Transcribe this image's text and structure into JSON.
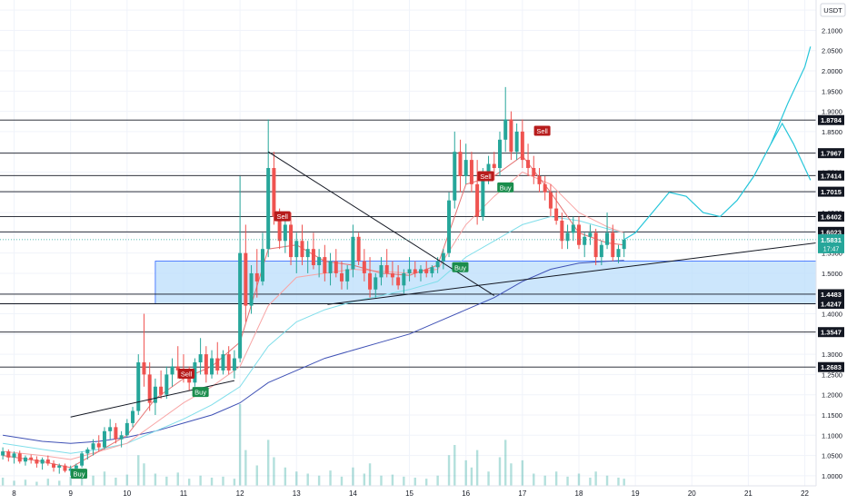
{
  "chart_data": {
    "type": "candlestick",
    "currency": "USDT",
    "x_ticks": [
      "8",
      "9",
      "10",
      "11",
      "12",
      "13",
      "14",
      "15",
      "16",
      "17",
      "18",
      "19",
      "20",
      "21",
      "22"
    ],
    "y_ticks": [
      "2.1500",
      "2.1000",
      "2.0500",
      "2.0000",
      "1.9500",
      "1.9000",
      "1.8500",
      "1.8000",
      "1.7500",
      "1.7000",
      "1.6500",
      "1.6000",
      "1.5500",
      "1.5000",
      "1.4500",
      "1.4000",
      "1.3500",
      "1.3000",
      "1.2500",
      "1.2000",
      "1.1500",
      "1.1000",
      "1.0500",
      "1.0000"
    ],
    "ylim": [
      0.975,
      2.175
    ],
    "xlim": [
      7.75,
      22.2
    ],
    "last_price": {
      "value": "1.5831",
      "countdown": "17:47"
    },
    "levels": [
      {
        "value": 1.8784,
        "label": "1.8784"
      },
      {
        "value": 1.7967,
        "label": "1.7967"
      },
      {
        "value": 1.7414,
        "label": "1.7414"
      },
      {
        "value": 1.7015,
        "label": "1.7015"
      },
      {
        "value": 1.6402,
        "label": "1.6402"
      },
      {
        "value": 1.6023,
        "label": "1.6023"
      },
      {
        "value": 1.4483,
        "label": "1.4483"
      },
      {
        "value": 1.4247,
        "label": "1.4247"
      },
      {
        "value": 1.3547,
        "label": "1.3547"
      },
      {
        "value": 1.2683,
        "label": "1.2683"
      }
    ],
    "zone": {
      "x": [
        10.5,
        22.2
      ],
      "y": [
        1.4247,
        1.53
      ]
    },
    "signals": [
      {
        "label": "Buy",
        "x": 9.15,
        "y": 1.005
      },
      {
        "label": "Sell",
        "x": 11.05,
        "y": 1.252
      },
      {
        "label": "Buy",
        "x": 11.3,
        "y": 1.207
      },
      {
        "label": "Sell",
        "x": 12.75,
        "y": 1.641
      },
      {
        "label": "Buy",
        "x": 15.9,
        "y": 1.515
      },
      {
        "label": "Sell",
        "x": 16.35,
        "y": 1.74
      },
      {
        "label": "Buy",
        "x": 16.7,
        "y": 1.712
      },
      {
        "label": "Sell",
        "x": 17.35,
        "y": 1.852
      }
    ],
    "candles": [
      [
        7.8,
        1.05,
        1.07,
        1.04,
        1.06
      ],
      [
        7.9,
        1.06,
        1.065,
        1.035,
        1.045
      ],
      [
        8.0,
        1.045,
        1.06,
        1.03,
        1.055
      ],
      [
        8.1,
        1.055,
        1.062,
        1.03,
        1.035
      ],
      [
        8.2,
        1.035,
        1.05,
        1.025,
        1.045
      ],
      [
        8.3,
        1.045,
        1.052,
        1.03,
        1.04
      ],
      [
        8.4,
        1.04,
        1.048,
        1.02,
        1.03
      ],
      [
        8.5,
        1.03,
        1.045,
        1.015,
        1.04
      ],
      [
        8.6,
        1.04,
        1.05,
        1.025,
        1.03
      ],
      [
        8.7,
        1.03,
        1.038,
        1.01,
        1.02
      ],
      [
        8.8,
        1.02,
        1.03,
        1.005,
        1.025
      ],
      [
        8.9,
        1.025,
        1.03,
        1.008,
        1.012
      ],
      [
        9.0,
        1.012,
        1.025,
        1.0,
        1.018
      ],
      [
        9.1,
        1.018,
        1.03,
        1.005,
        1.025
      ],
      [
        9.2,
        1.025,
        1.06,
        1.02,
        1.055
      ],
      [
        9.3,
        1.055,
        1.07,
        1.04,
        1.065
      ],
      [
        9.4,
        1.065,
        1.09,
        1.05,
        1.08
      ],
      [
        9.5,
        1.08,
        1.1,
        1.06,
        1.07
      ],
      [
        9.6,
        1.07,
        1.12,
        1.065,
        1.11
      ],
      [
        9.7,
        1.11,
        1.14,
        1.09,
        1.12
      ],
      [
        9.8,
        1.12,
        1.13,
        1.08,
        1.09
      ],
      [
        9.9,
        1.09,
        1.11,
        1.07,
        1.1
      ],
      [
        10.0,
        1.1,
        1.14,
        1.095,
        1.13
      ],
      [
        10.1,
        1.13,
        1.17,
        1.12,
        1.16
      ],
      [
        10.2,
        1.16,
        1.3,
        1.15,
        1.28
      ],
      [
        10.3,
        1.28,
        1.4,
        1.22,
        1.25
      ],
      [
        10.4,
        1.25,
        1.28,
        1.16,
        1.18
      ],
      [
        10.5,
        1.18,
        1.24,
        1.15,
        1.22
      ],
      [
        10.6,
        1.22,
        1.26,
        1.19,
        1.2
      ],
      [
        10.7,
        1.2,
        1.27,
        1.19,
        1.25
      ],
      [
        10.8,
        1.25,
        1.29,
        1.22,
        1.27
      ],
      [
        10.9,
        1.27,
        1.32,
        1.24,
        1.26
      ],
      [
        11.0,
        1.26,
        1.3,
        1.23,
        1.24
      ],
      [
        11.1,
        1.24,
        1.27,
        1.21,
        1.23
      ],
      [
        11.2,
        1.23,
        1.29,
        1.22,
        1.28
      ],
      [
        11.3,
        1.28,
        1.34,
        1.25,
        1.3
      ],
      [
        11.4,
        1.3,
        1.32,
        1.23,
        1.25
      ],
      [
        11.5,
        1.25,
        1.31,
        1.24,
        1.29
      ],
      [
        11.6,
        1.29,
        1.33,
        1.25,
        1.26
      ],
      [
        11.7,
        1.26,
        1.31,
        1.25,
        1.3
      ],
      [
        11.8,
        1.3,
        1.32,
        1.25,
        1.26
      ],
      [
        11.9,
        1.26,
        1.31,
        1.24,
        1.29
      ],
      [
        12.0,
        1.29,
        1.74,
        1.28,
        1.55
      ],
      [
        12.1,
        1.55,
        1.62,
        1.38,
        1.42
      ],
      [
        12.2,
        1.42,
        1.52,
        1.4,
        1.5
      ],
      [
        12.3,
        1.5,
        1.56,
        1.44,
        1.48
      ],
      [
        12.4,
        1.48,
        1.6,
        1.47,
        1.56
      ],
      [
        12.5,
        1.56,
        1.88,
        1.54,
        1.76
      ],
      [
        12.6,
        1.76,
        1.8,
        1.62,
        1.64
      ],
      [
        12.7,
        1.64,
        1.66,
        1.56,
        1.58
      ],
      [
        12.8,
        1.58,
        1.64,
        1.55,
        1.62
      ],
      [
        12.9,
        1.62,
        1.65,
        1.52,
        1.54
      ],
      [
        13.0,
        1.54,
        1.6,
        1.5,
        1.58
      ],
      [
        13.1,
        1.58,
        1.62,
        1.52,
        1.54
      ],
      [
        13.2,
        1.54,
        1.58,
        1.5,
        1.56
      ],
      [
        13.3,
        1.56,
        1.6,
        1.51,
        1.52
      ],
      [
        13.4,
        1.52,
        1.56,
        1.49,
        1.54
      ],
      [
        13.5,
        1.54,
        1.57,
        1.48,
        1.5
      ],
      [
        13.6,
        1.5,
        1.55,
        1.47,
        1.53
      ],
      [
        13.7,
        1.53,
        1.56,
        1.49,
        1.5
      ],
      [
        13.8,
        1.5,
        1.53,
        1.46,
        1.48
      ],
      [
        13.9,
        1.48,
        1.52,
        1.46,
        1.51
      ],
      [
        14.0,
        1.51,
        1.62,
        1.49,
        1.59
      ],
      [
        14.1,
        1.59,
        1.6,
        1.52,
        1.53
      ],
      [
        14.2,
        1.53,
        1.56,
        1.48,
        1.5
      ],
      [
        14.3,
        1.5,
        1.54,
        1.44,
        1.46
      ],
      [
        14.4,
        1.46,
        1.5,
        1.44,
        1.49
      ],
      [
        14.5,
        1.49,
        1.54,
        1.47,
        1.52
      ],
      [
        14.6,
        1.52,
        1.56,
        1.49,
        1.5
      ],
      [
        14.7,
        1.5,
        1.53,
        1.47,
        1.49
      ],
      [
        14.8,
        1.49,
        1.52,
        1.46,
        1.47
      ],
      [
        14.9,
        1.47,
        1.51,
        1.45,
        1.5
      ],
      [
        15.0,
        1.5,
        1.54,
        1.48,
        1.51
      ],
      [
        15.1,
        1.51,
        1.53,
        1.49,
        1.5
      ],
      [
        15.2,
        1.5,
        1.52,
        1.48,
        1.51
      ],
      [
        15.3,
        1.51,
        1.53,
        1.49,
        1.5
      ],
      [
        15.4,
        1.5,
        1.52,
        1.49,
        1.515
      ],
      [
        15.5,
        1.515,
        1.54,
        1.5,
        1.53
      ],
      [
        15.6,
        1.53,
        1.56,
        1.51,
        1.55
      ],
      [
        15.7,
        1.55,
        1.7,
        1.54,
        1.68
      ],
      [
        15.8,
        1.68,
        1.85,
        1.66,
        1.8
      ],
      [
        15.9,
        1.8,
        1.83,
        1.7,
        1.74
      ],
      [
        16.0,
        1.74,
        1.82,
        1.72,
        1.78
      ],
      [
        16.1,
        1.78,
        1.8,
        1.7,
        1.72
      ],
      [
        16.2,
        1.72,
        1.78,
        1.62,
        1.64
      ],
      [
        16.3,
        1.64,
        1.76,
        1.63,
        1.74
      ],
      [
        16.4,
        1.74,
        1.79,
        1.72,
        1.77
      ],
      [
        16.5,
        1.77,
        1.8,
        1.73,
        1.76
      ],
      [
        16.6,
        1.76,
        1.85,
        1.74,
        1.83
      ],
      [
        16.7,
        1.83,
        1.96,
        1.8,
        1.88
      ],
      [
        16.8,
        1.88,
        1.9,
        1.78,
        1.8
      ],
      [
        16.9,
        1.8,
        1.87,
        1.78,
        1.85
      ],
      [
        17.0,
        1.85,
        1.88,
        1.76,
        1.78
      ],
      [
        17.1,
        1.78,
        1.82,
        1.74,
        1.76
      ],
      [
        17.2,
        1.76,
        1.79,
        1.72,
        1.74
      ],
      [
        17.3,
        1.74,
        1.76,
        1.7,
        1.72
      ],
      [
        17.4,
        1.72,
        1.74,
        1.68,
        1.7
      ],
      [
        17.5,
        1.7,
        1.72,
        1.64,
        1.66
      ],
      [
        17.6,
        1.66,
        1.7,
        1.62,
        1.63
      ],
      [
        17.7,
        1.63,
        1.65,
        1.56,
        1.58
      ],
      [
        17.8,
        1.58,
        1.62,
        1.56,
        1.6
      ],
      [
        17.9,
        1.6,
        1.64,
        1.58,
        1.62
      ],
      [
        18.0,
        1.62,
        1.64,
        1.56,
        1.57
      ],
      [
        18.1,
        1.57,
        1.6,
        1.54,
        1.59
      ],
      [
        18.2,
        1.59,
        1.62,
        1.57,
        1.6
      ],
      [
        18.3,
        1.6,
        1.61,
        1.52,
        1.54
      ],
      [
        18.4,
        1.54,
        1.58,
        1.52,
        1.57
      ],
      [
        18.5,
        1.57,
        1.65,
        1.56,
        1.6
      ],
      [
        18.6,
        1.6,
        1.62,
        1.53,
        1.54
      ],
      [
        18.7,
        1.54,
        1.57,
        1.525,
        1.56
      ],
      [
        18.8,
        1.56,
        1.6,
        1.54,
        1.583
      ]
    ],
    "volume": [
      [
        7.8,
        8
      ],
      [
        8.0,
        5
      ],
      [
        8.2,
        6
      ],
      [
        8.4,
        4
      ],
      [
        8.6,
        7
      ],
      [
        8.8,
        5
      ],
      [
        9.0,
        9
      ],
      [
        9.2,
        12
      ],
      [
        9.4,
        10
      ],
      [
        9.6,
        14
      ],
      [
        9.8,
        8
      ],
      [
        10.0,
        11
      ],
      [
        10.2,
        30
      ],
      [
        10.3,
        22
      ],
      [
        10.5,
        12
      ],
      [
        10.7,
        9
      ],
      [
        10.9,
        13
      ],
      [
        11.1,
        7
      ],
      [
        11.3,
        10
      ],
      [
        11.5,
        8
      ],
      [
        11.7,
        9
      ],
      [
        11.9,
        7
      ],
      [
        12.0,
        80
      ],
      [
        12.1,
        35
      ],
      [
        12.3,
        20
      ],
      [
        12.5,
        45
      ],
      [
        12.6,
        28
      ],
      [
        12.8,
        18
      ],
      [
        13.0,
        14
      ],
      [
        13.2,
        12
      ],
      [
        13.4,
        10
      ],
      [
        13.6,
        15
      ],
      [
        13.8,
        9
      ],
      [
        14.0,
        18
      ],
      [
        14.2,
        12
      ],
      [
        14.3,
        22
      ],
      [
        14.5,
        10
      ],
      [
        14.7,
        11
      ],
      [
        14.9,
        9
      ],
      [
        15.1,
        8
      ],
      [
        15.3,
        7
      ],
      [
        15.5,
        10
      ],
      [
        15.7,
        30
      ],
      [
        15.8,
        40
      ],
      [
        16.0,
        25
      ],
      [
        16.1,
        18
      ],
      [
        16.2,
        35
      ],
      [
        16.4,
        14
      ],
      [
        16.6,
        28
      ],
      [
        16.7,
        45
      ],
      [
        16.8,
        22
      ],
      [
        17.0,
        25
      ],
      [
        17.2,
        12
      ],
      [
        17.4,
        10
      ],
      [
        17.6,
        14
      ],
      [
        17.8,
        9
      ],
      [
        18.0,
        12
      ],
      [
        18.2,
        8
      ],
      [
        18.3,
        14
      ],
      [
        18.5,
        10
      ],
      [
        18.7,
        8
      ],
      [
        18.8,
        7
      ]
    ],
    "ma_fast": [
      [
        7.8,
        1.05
      ],
      [
        8.5,
        1.035
      ],
      [
        9.0,
        1.02
      ],
      [
        9.5,
        1.06
      ],
      [
        10.0,
        1.1
      ],
      [
        10.5,
        1.19
      ],
      [
        11.0,
        1.24
      ],
      [
        11.5,
        1.27
      ],
      [
        12.0,
        1.33
      ],
      [
        12.5,
        1.56
      ],
      [
        13.0,
        1.57
      ],
      [
        13.5,
        1.53
      ],
      [
        14.0,
        1.52
      ],
      [
        14.5,
        1.5
      ],
      [
        15.0,
        1.495
      ],
      [
        15.5,
        1.52
      ],
      [
        16.0,
        1.72
      ],
      [
        16.5,
        1.74
      ],
      [
        17.0,
        1.79
      ],
      [
        17.5,
        1.7
      ],
      [
        18.0,
        1.6
      ],
      [
        18.5,
        1.575
      ],
      [
        18.8,
        1.57
      ]
    ],
    "ma_mid": [
      [
        7.8,
        1.06
      ],
      [
        8.5,
        1.05
      ],
      [
        9.0,
        1.04
      ],
      [
        9.5,
        1.06
      ],
      [
        10.0,
        1.08
      ],
      [
        10.5,
        1.13
      ],
      [
        11.0,
        1.18
      ],
      [
        11.5,
        1.22
      ],
      [
        12.0,
        1.27
      ],
      [
        12.5,
        1.42
      ],
      [
        13.0,
        1.49
      ],
      [
        13.5,
        1.5
      ],
      [
        14.0,
        1.51
      ],
      [
        14.5,
        1.505
      ],
      [
        15.0,
        1.5
      ],
      [
        15.5,
        1.51
      ],
      [
        16.0,
        1.62
      ],
      [
        16.5,
        1.69
      ],
      [
        17.0,
        1.75
      ],
      [
        17.5,
        1.72
      ],
      [
        18.0,
        1.65
      ],
      [
        18.5,
        1.615
      ],
      [
        18.8,
        1.6
      ]
    ],
    "ma_cyan": [
      [
        7.8,
        1.08
      ],
      [
        8.5,
        1.065
      ],
      [
        9.0,
        1.055
      ],
      [
        9.5,
        1.065
      ],
      [
        10.0,
        1.08
      ],
      [
        10.5,
        1.11
      ],
      [
        11.0,
        1.14
      ],
      [
        11.5,
        1.175
      ],
      [
        12.0,
        1.22
      ],
      [
        12.5,
        1.32
      ],
      [
        13.0,
        1.38
      ],
      [
        13.5,
        1.41
      ],
      [
        14.0,
        1.43
      ],
      [
        14.5,
        1.445
      ],
      [
        15.0,
        1.46
      ],
      [
        15.5,
        1.48
      ],
      [
        16.0,
        1.54
      ],
      [
        16.5,
        1.58
      ],
      [
        17.0,
        1.62
      ],
      [
        17.5,
        1.64
      ],
      [
        18.0,
        1.63
      ],
      [
        18.5,
        1.61
      ],
      [
        18.8,
        1.6
      ]
    ],
    "ma_slow": [
      [
        7.8,
        1.1
      ],
      [
        8.5,
        1.085
      ],
      [
        9.0,
        1.08
      ],
      [
        9.5,
        1.085
      ],
      [
        10.0,
        1.095
      ],
      [
        10.5,
        1.11
      ],
      [
        11.0,
        1.13
      ],
      [
        11.5,
        1.15
      ],
      [
        12.0,
        1.18
      ],
      [
        12.5,
        1.23
      ],
      [
        13.0,
        1.26
      ],
      [
        13.5,
        1.29
      ],
      [
        14.0,
        1.31
      ],
      [
        14.5,
        1.33
      ],
      [
        15.0,
        1.35
      ],
      [
        15.5,
        1.38
      ],
      [
        16.0,
        1.41
      ],
      [
        16.5,
        1.44
      ],
      [
        17.0,
        1.48
      ],
      [
        17.5,
        1.51
      ],
      [
        18.0,
        1.525
      ],
      [
        18.5,
        1.53
      ],
      [
        18.8,
        1.532
      ]
    ],
    "projection": [
      [
        18.8,
        1.583
      ],
      [
        19.0,
        1.6
      ],
      [
        19.3,
        1.65
      ],
      [
        19.6,
        1.7
      ],
      [
        19.9,
        1.69
      ],
      [
        20.2,
        1.65
      ],
      [
        20.5,
        1.64
      ],
      [
        20.8,
        1.68
      ],
      [
        21.1,
        1.74
      ],
      [
        21.4,
        1.82
      ],
      [
        21.7,
        1.92
      ],
      [
        22.0,
        2.01
      ],
      [
        22.1,
        2.06
      ]
    ],
    "projection_alt": [
      [
        21.4,
        1.82
      ],
      [
        21.6,
        1.87
      ],
      [
        21.8,
        1.82
      ],
      [
        22.0,
        1.76
      ],
      [
        22.1,
        1.73
      ]
    ],
    "trendlines": [
      [
        [
          9.0,
          1.145
        ],
        [
          11.9,
          1.235
        ]
      ],
      [
        [
          12.5,
          1.8
        ],
        [
          16.5,
          1.445
        ]
      ],
      [
        [
          13.55,
          1.423
        ],
        [
          22.2,
          1.575
        ]
      ]
    ]
  }
}
